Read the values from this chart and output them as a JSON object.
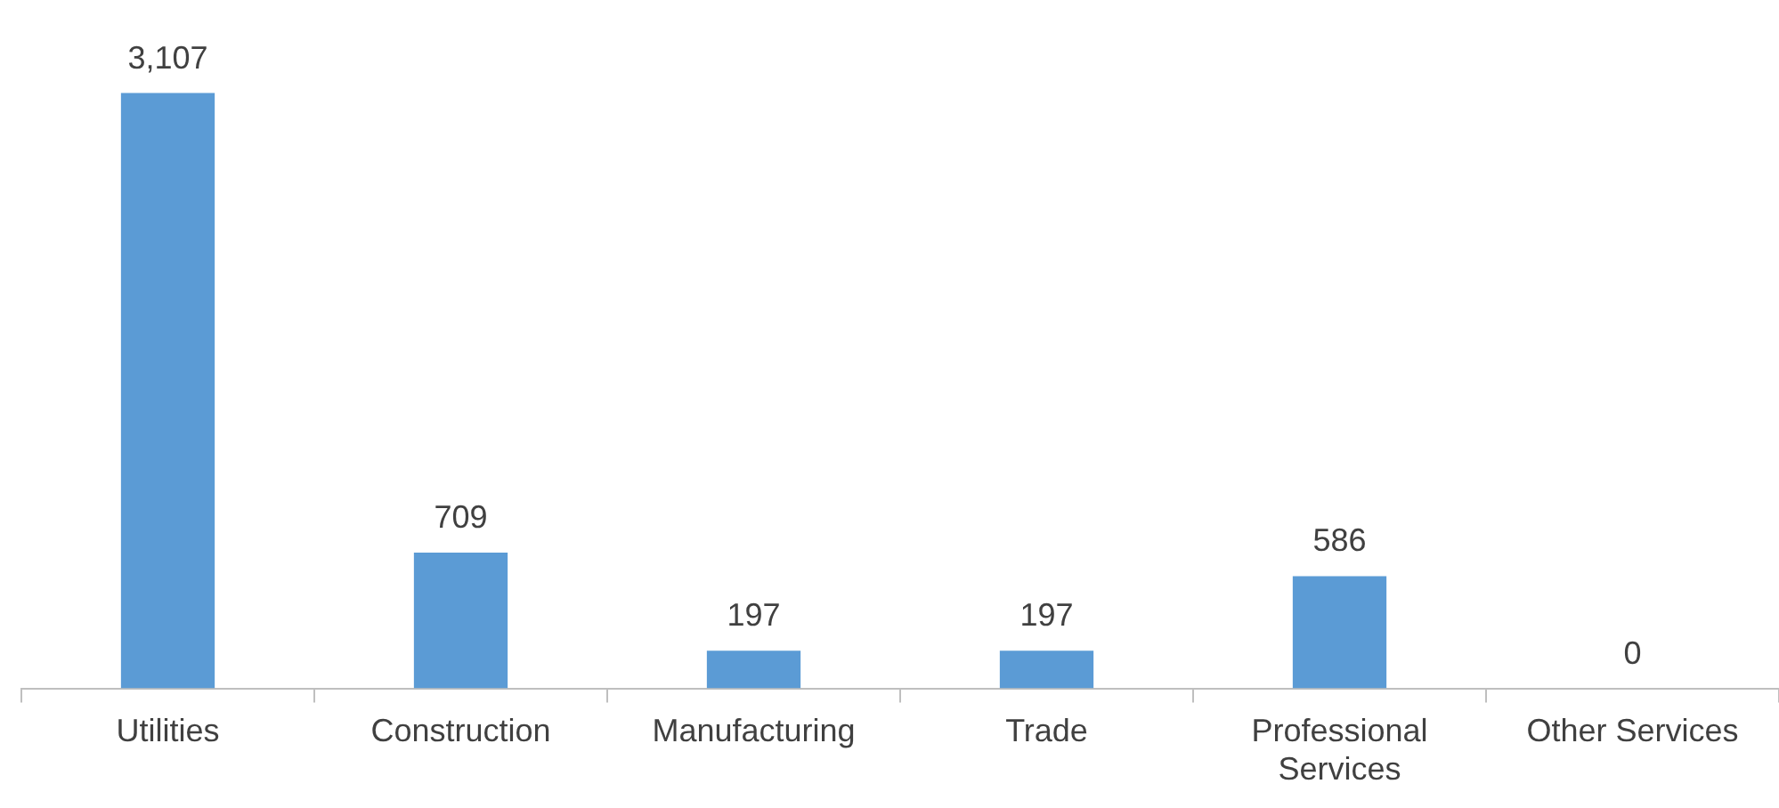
{
  "chart_data": {
    "type": "bar",
    "categories": [
      "Utilities",
      "Construction",
      "Manufacturing",
      "Trade",
      "Professional Services",
      "Other Services"
    ],
    "values": [
      3107,
      709,
      197,
      197,
      586,
      0
    ],
    "value_labels": [
      "3,107",
      "709",
      "197",
      "197",
      "586",
      "0"
    ],
    "color": "#5b9bd5",
    "grid": false,
    "legend": false,
    "tick_labels": "x"
  }
}
